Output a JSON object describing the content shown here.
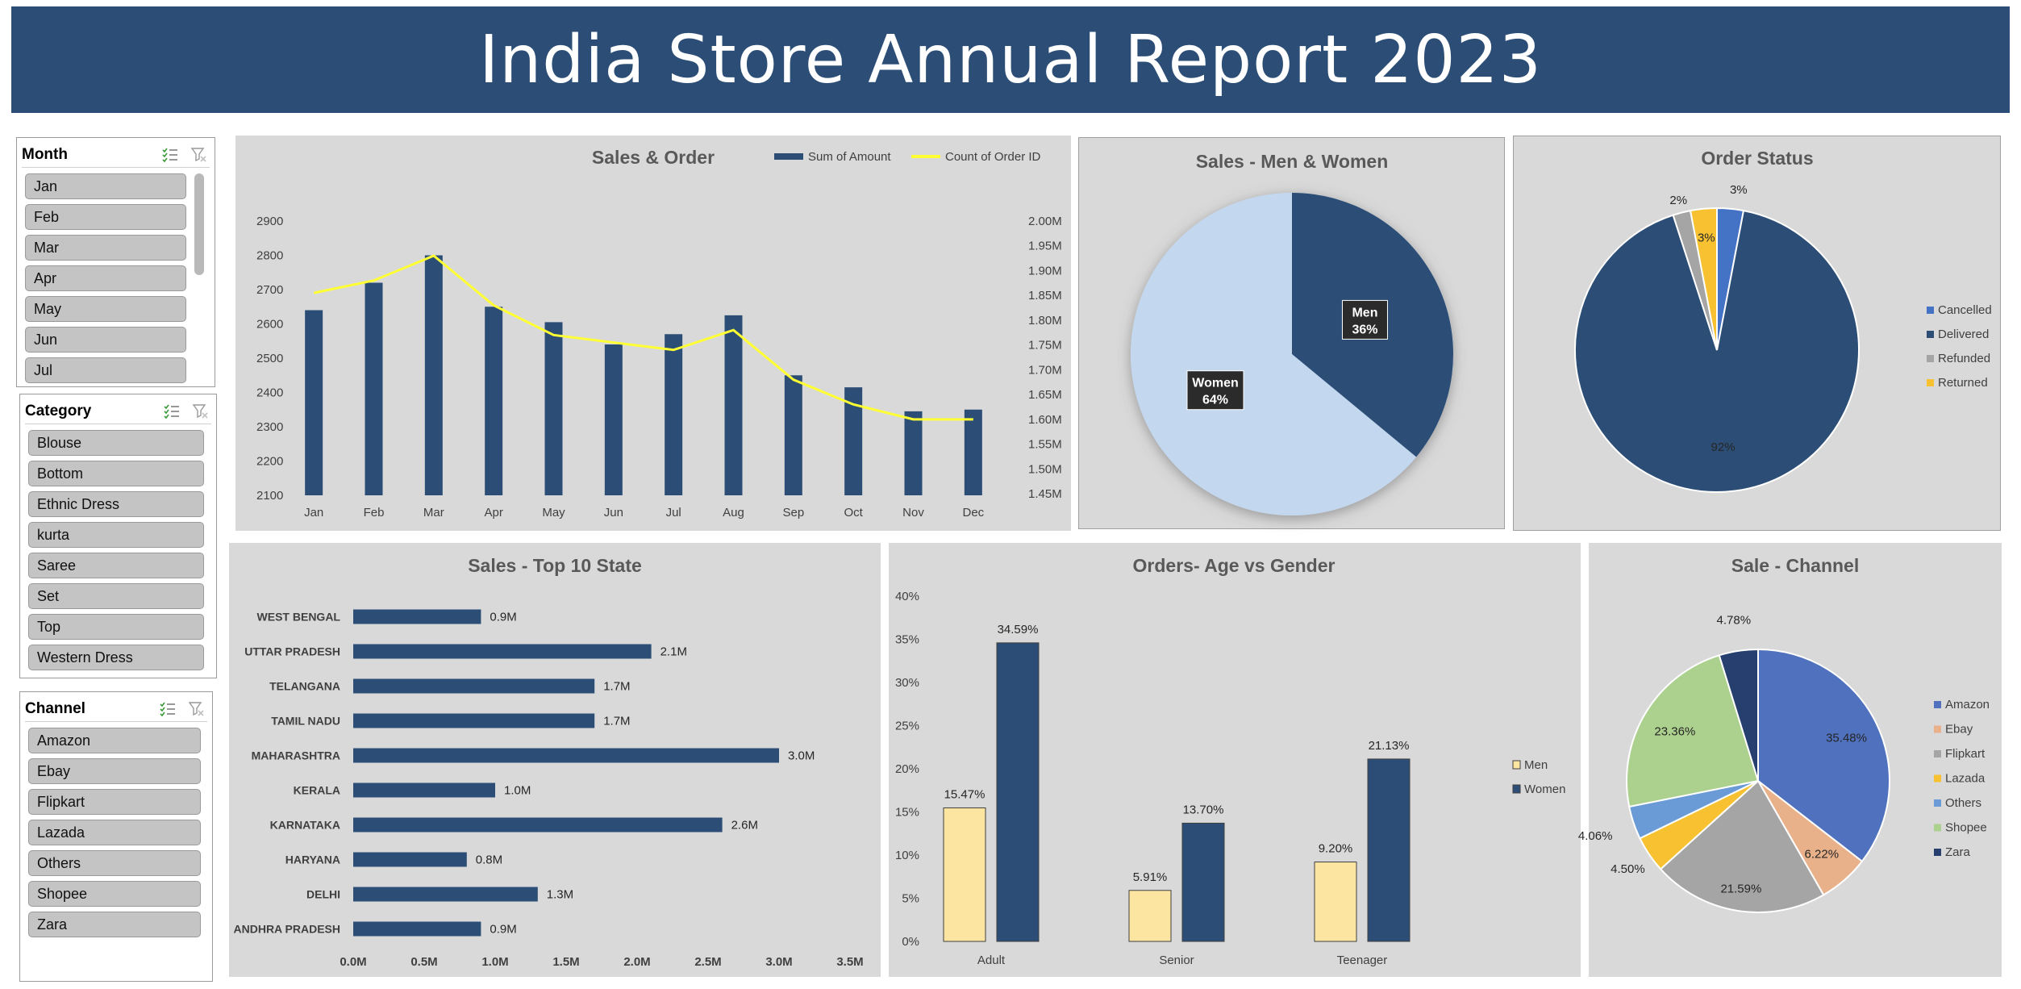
{
  "header": {
    "title": "India Store Annual Report 2023"
  },
  "slicers": [
    {
      "title": "Month",
      "items": [
        "Jan",
        "Feb",
        "Mar",
        "Apr",
        "May",
        "Jun",
        "Jul"
      ]
    },
    {
      "title": "Category",
      "items": [
        "Blouse",
        "Bottom",
        "Ethnic Dress",
        "kurta",
        "Saree",
        "Set",
        "Top",
        "Western Dress"
      ]
    },
    {
      "title": "Channel",
      "items": [
        "Amazon",
        "Ebay",
        "Flipkart",
        "Lazada",
        "Others",
        "Shopee",
        "Zara"
      ]
    }
  ],
  "chart_data": [
    {
      "id": "sales_order",
      "type": "bar",
      "title": "Sales & Order",
      "categories": [
        "Jan",
        "Feb",
        "Mar",
        "Apr",
        "May",
        "Jun",
        "Jul",
        "Aug",
        "Sep",
        "Oct",
        "Nov",
        "Dec"
      ],
      "series": [
        {
          "name": "Sum of Amount",
          "type": "bar",
          "axis": "left",
          "color": "#2c4e76",
          "values": [
            2640,
            2720,
            2800,
            2650,
            2605,
            2540,
            2570,
            2625,
            2450,
            2415,
            2345,
            2350
          ]
        },
        {
          "name": "Count of Order ID",
          "type": "line",
          "axis": "right",
          "color": "#ffff33",
          "values": [
            1.855,
            1.88,
            1.93,
            1.83,
            1.77,
            1.755,
            1.74,
            1.78,
            1.68,
            1.63,
            1.6,
            1.6
          ]
        }
      ],
      "y_left": {
        "ticks": [
          "2100",
          "2200",
          "2300",
          "2400",
          "2500",
          "2600",
          "2700",
          "2800",
          "2900"
        ],
        "range": [
          2100,
          2900
        ]
      },
      "y_right": {
        "ticks": [
          "1.45M",
          "1.50M",
          "1.55M",
          "1.60M",
          "1.65M",
          "1.70M",
          "1.75M",
          "1.80M",
          "1.85M",
          "1.90M",
          "1.95M",
          "2.00M"
        ],
        "range": [
          1.45,
          2.0
        ]
      },
      "legend_position": "top-right",
      "grid": false
    },
    {
      "id": "men_women",
      "type": "pie",
      "title": "Sales - Men & Women",
      "slices": [
        {
          "name": "Men",
          "value": 36,
          "label": "36%",
          "color": "#2c4e76"
        },
        {
          "name": "Women",
          "value": 64,
          "label": "64%",
          "color": "#c3d7ee"
        }
      ]
    },
    {
      "id": "order_status",
      "type": "pie",
      "title": "Order Status",
      "slices": [
        {
          "name": "Cancelled",
          "value": 3,
          "label": "3%",
          "color": "#4472c4"
        },
        {
          "name": "Delivered",
          "value": 92,
          "label": "92%",
          "color": "#2c4e76"
        },
        {
          "name": "Refunded",
          "value": 2,
          "label": "2%",
          "color": "#a5a5a5"
        },
        {
          "name": "Returned",
          "value": 3,
          "label": "3%",
          "color": "#f7c131"
        }
      ],
      "legend_position": "right"
    },
    {
      "id": "top_states",
      "type": "bar",
      "orientation": "horizontal",
      "title": "Sales - Top 10 State",
      "categories": [
        "WEST BENGAL",
        "UTTAR PRADESH",
        "TELANGANA",
        "TAMIL NADU",
        "MAHARASHTRA",
        "KERALA",
        "KARNATAKA",
        "HARYANA",
        "DELHI",
        "ANDHRA PRADESH"
      ],
      "values": [
        0.9,
        2.1,
        1.7,
        1.7,
        3.0,
        1.0,
        2.6,
        0.8,
        1.3,
        0.9
      ],
      "value_labels": [
        "0.9M",
        "2.1M",
        "1.7M",
        "1.7M",
        "3.0M",
        "1.0M",
        "2.6M",
        "0.8M",
        "1.3M",
        "0.9M"
      ],
      "x_ticks": [
        "0.0M",
        "0.5M",
        "1.0M",
        "1.5M",
        "2.0M",
        "2.5M",
        "3.0M",
        "3.5M"
      ],
      "xlim": [
        0,
        3.5
      ],
      "color": "#2c4e76"
    },
    {
      "id": "age_gender",
      "type": "bar",
      "title": "Orders- Age vs Gender",
      "categories": [
        "Adult",
        "Senior",
        "Teenager"
      ],
      "series": [
        {
          "name": "Men",
          "values": [
            15.47,
            5.91,
            9.2
          ],
          "labels": [
            "15.47%",
            "5.91%",
            "9.20%"
          ],
          "color": "#fce5a0"
        },
        {
          "name": "Women",
          "values": [
            34.59,
            13.7,
            21.13
          ],
          "labels": [
            "34.59%",
            "13.70%",
            "21.13%"
          ],
          "color": "#2c4e76"
        }
      ],
      "y_ticks": [
        "0%",
        "5%",
        "10%",
        "15%",
        "20%",
        "25%",
        "30%",
        "35%",
        "40%"
      ],
      "ylim": [
        0,
        40
      ],
      "legend_position": "right"
    },
    {
      "id": "sale_channel",
      "type": "pie",
      "title": "Sale - Channel",
      "slices": [
        {
          "name": "Amazon",
          "value": 35.48,
          "label": "35.48%",
          "color": "#4f71be"
        },
        {
          "name": "Ebay",
          "value": 6.22,
          "label": "6.22%",
          "color": "#e9b18a"
        },
        {
          "name": "Flipkart",
          "value": 21.59,
          "label": "21.59%",
          "color": "#a5a5a5"
        },
        {
          "name": "Lazada",
          "value": 4.5,
          "label": "4.50%",
          "color": "#f7c131"
        },
        {
          "name": "Others",
          "value": 4.06,
          "label": "4.06%",
          "color": "#6b9bd6"
        },
        {
          "name": "Shopee",
          "value": 23.36,
          "label": "23.36%",
          "color": "#acd08e"
        },
        {
          "name": "Zara",
          "value": 4.78,
          "label": "4.78%",
          "color": "#263f6e"
        }
      ],
      "legend_position": "right"
    }
  ]
}
